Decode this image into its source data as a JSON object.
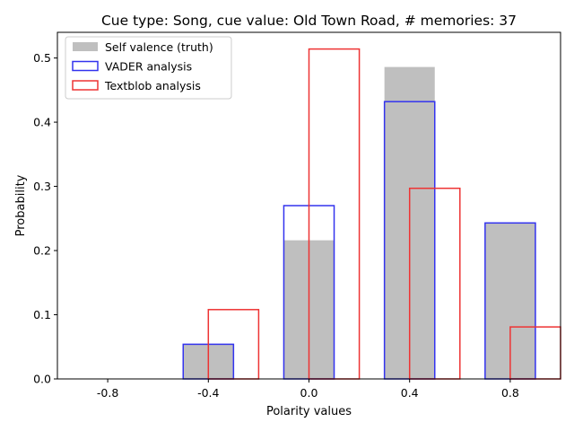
{
  "chart_data": {
    "type": "bar",
    "title": "Cue type: Song, cue value: Old Town Road, # memories: 37",
    "xlabel": "Polarity values",
    "ylabel": "Probability",
    "x_ticks": [
      "-0.8",
      "-0.4",
      "0.0",
      "0.4",
      "0.8"
    ],
    "y_ticks": [
      "0.0",
      "0.1",
      "0.2",
      "0.3",
      "0.4",
      "0.5"
    ],
    "xlim": [
      -1.0,
      1.0
    ],
    "ylim": [
      0,
      0.54
    ],
    "bin_width": 0.2,
    "legend_position": "top-left",
    "series": [
      {
        "name": "Self valence (truth)",
        "style": "filled",
        "color": "#bfbfbf",
        "bins": [
          {
            "left": -0.9,
            "value": 0.0
          },
          {
            "left": -0.5,
            "value": 0.054
          },
          {
            "left": -0.1,
            "value": 0.216
          },
          {
            "left": 0.3,
            "value": 0.486
          },
          {
            "left": 0.7,
            "value": 0.243
          }
        ]
      },
      {
        "name": "VADER analysis",
        "style": "outline",
        "color": "#3333ee",
        "bins": [
          {
            "left": -0.9,
            "value": 0.0
          },
          {
            "left": -0.5,
            "value": 0.054
          },
          {
            "left": -0.1,
            "value": 0.27
          },
          {
            "left": 0.3,
            "value": 0.432
          },
          {
            "left": 0.7,
            "value": 0.243
          }
        ]
      },
      {
        "name": "Textblob analysis",
        "style": "outline",
        "color": "#ee3333",
        "bins": [
          {
            "left": -0.8,
            "value": 0.0
          },
          {
            "left": -0.4,
            "value": 0.108
          },
          {
            "left": 0.0,
            "value": 0.514
          },
          {
            "left": 0.4,
            "value": 0.297
          },
          {
            "left": 0.8,
            "value": 0.081
          }
        ]
      }
    ]
  }
}
